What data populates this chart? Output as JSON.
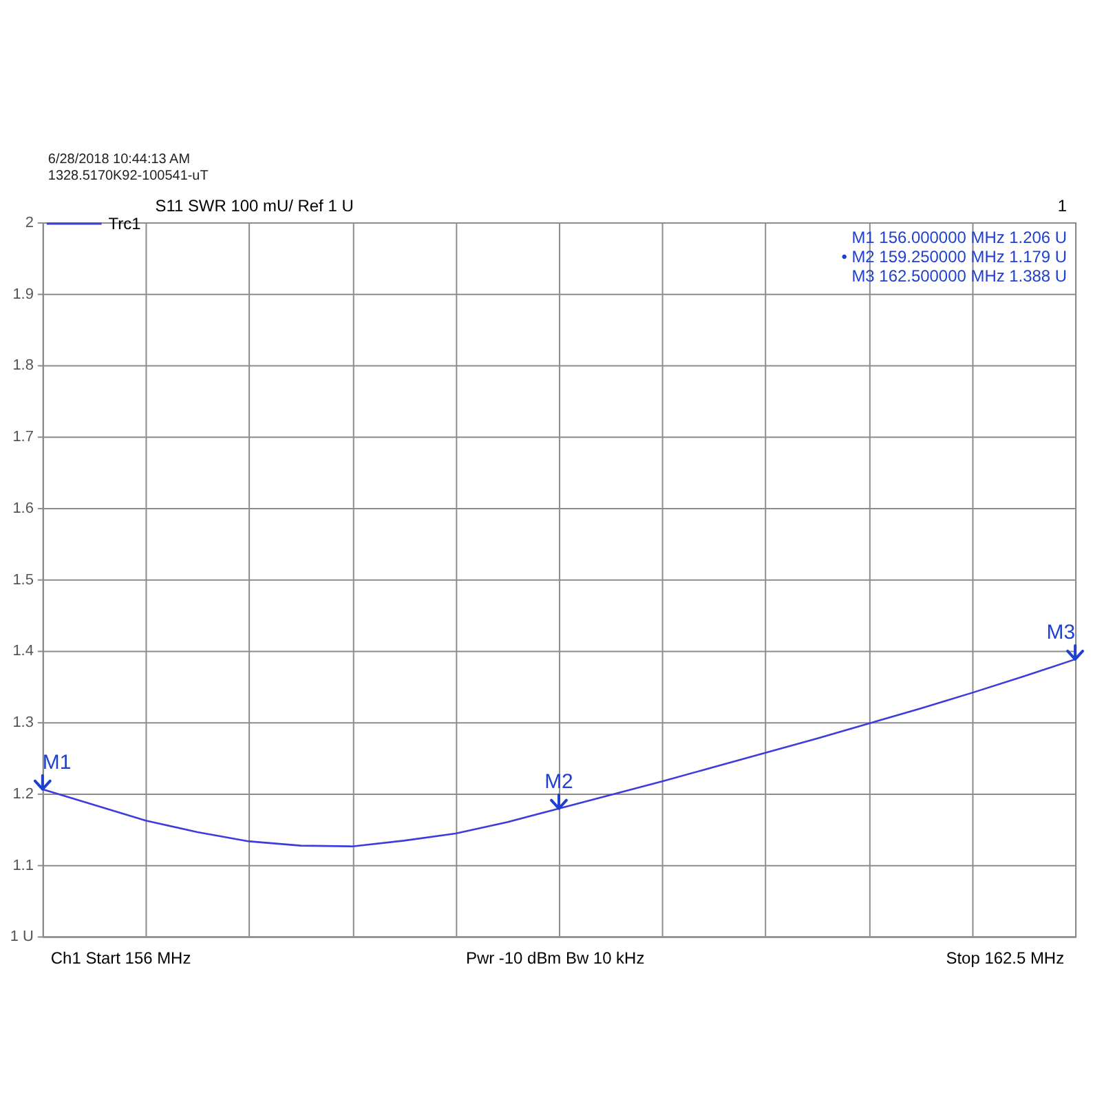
{
  "chart_data": {
    "type": "line",
    "title": "S11  SWR  100 mU/ Ref 1 U",
    "categories": [
      null,
      null,
      null,
      null,
      null,
      null,
      null,
      null,
      null,
      null,
      null,
      null,
      null,
      null,
      null,
      null,
      null,
      null,
      null,
      null,
      null
    ],
    "series": [
      {
        "name": "Trc1",
        "color": "#3c3cdc",
        "values": [
          1.206,
          1.184,
          1.162,
          1.146,
          1.133,
          1.127,
          1.126,
          1.134,
          1.144,
          1.16,
          1.179,
          1.198,
          1.217,
          1.237,
          1.257,
          1.277,
          1.298,
          1.319,
          1.341,
          1.364,
          1.388
        ]
      }
    ],
    "ylim": [
      1,
      2
    ],
    "yticks": [
      {
        "value": 1,
        "label": "1 U"
      },
      1.1,
      1.2,
      1.3,
      1.4,
      1.5,
      1.6,
      1.7,
      1.8,
      1.9,
      2
    ],
    "grid": true,
    "legend": "top left",
    "tick_labels": "y",
    "marker": "none",
    "line_style": "solid",
    "annotations": [
      "6/28/2018 10:44:13 AM",
      "1328.5170K92-100541-uT",
      "1",
      "M1  156.000000  MHz  1.206  U",
      "• M2  159.250000  MHz  1.179  U",
      "M3  162.500000  MHz  1.388  U",
      "Ch1  Start  156 MHz",
      "Pwr  -10 dBm  Bw  10 kHz",
      "Stop  162.5 MHz",
      {
        "text": "M1",
        "y": 1.206
      },
      {
        "text": "M2",
        "y": 1.179
      },
      {
        "text": "M3",
        "y": 1.388
      }
    ]
  }
}
